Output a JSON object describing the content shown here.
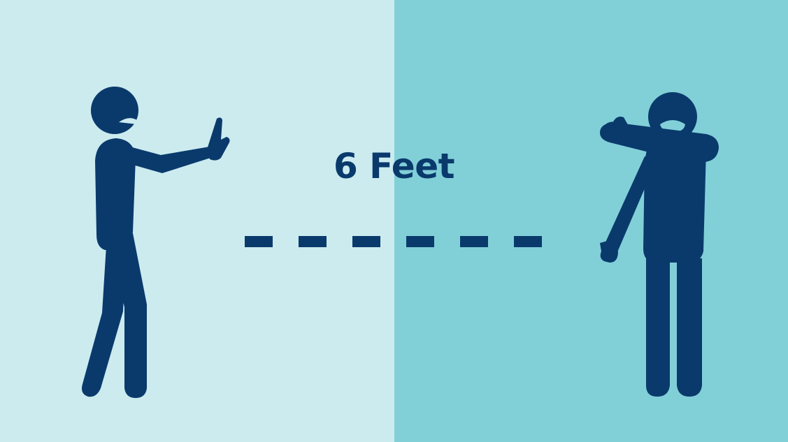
{
  "distance_label": "6 Feet",
  "colors": {
    "left_background": "#cbebef",
    "right_background": "#81d0d8",
    "figure": "#0a3a6c",
    "text": "#0a3a6c"
  },
  "icons": {
    "left_figure": "person-stop-hand-icon",
    "right_figure": "person-sneeze-elbow-icon",
    "distance_line": "dashed-line"
  }
}
